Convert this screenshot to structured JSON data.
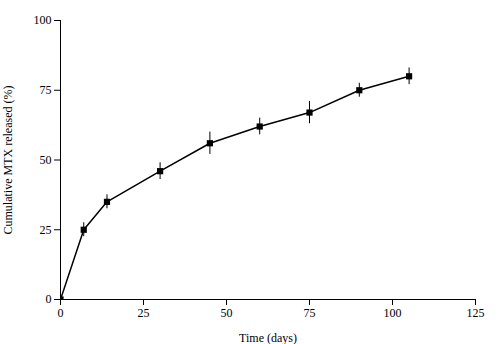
{
  "chart_data": {
    "type": "line",
    "x": [
      0,
      7,
      14,
      30,
      45,
      60,
      75,
      90,
      105
    ],
    "values": [
      0,
      25,
      35,
      46,
      56,
      62,
      67,
      75,
      80
    ],
    "yerr": [
      0,
      2.5,
      2.5,
      3,
      4,
      3,
      4,
      2.5,
      3
    ],
    "xlabel": "Time (days)",
    "ylabel": "Cumulative MTX released (%)",
    "xlim": [
      0,
      125
    ],
    "ylim": [
      0,
      100
    ],
    "xticks": [
      0,
      25,
      50,
      75,
      100,
      125
    ],
    "yticks": [
      0,
      25,
      50,
      75,
      100
    ],
    "marker": "square"
  }
}
